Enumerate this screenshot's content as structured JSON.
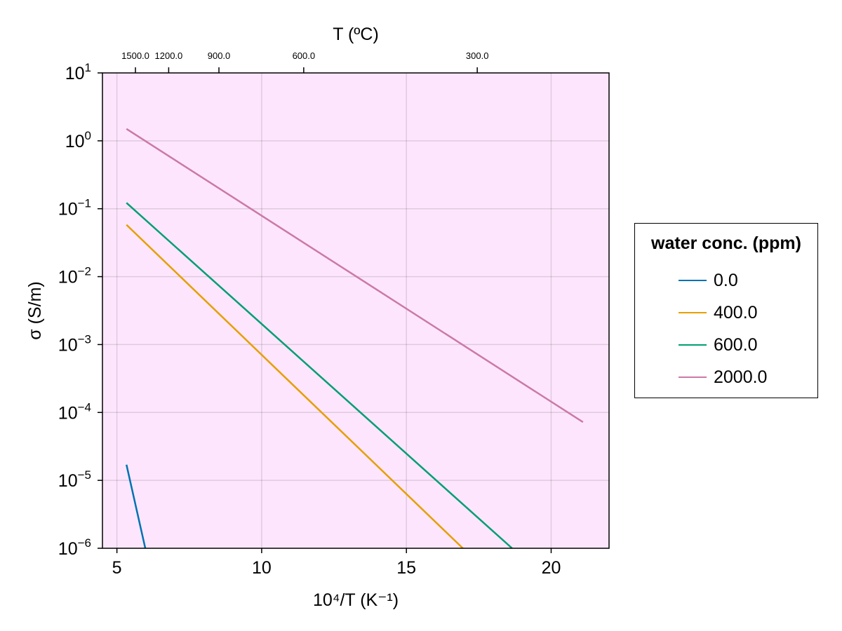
{
  "chart_data": {
    "type": "line",
    "title": "",
    "xlabel": "10⁴/T (K⁻¹)",
    "ylabel": "σ (S/m)",
    "x2label": "T (ºC)",
    "xlim": [
      4.5,
      22.0
    ],
    "ylim": [
      1e-06,
      10
    ],
    "yscale": "log",
    "x_ticks": [
      5,
      10,
      15,
      20
    ],
    "x_tick_labels": [
      "5",
      "10",
      "15",
      "20"
    ],
    "y_ticks": [
      1e-06,
      1e-05,
      0.0001,
      0.001,
      0.01,
      0.1,
      1,
      10
    ],
    "y_tick_exponents": [
      "-6",
      "-5",
      "-4",
      "-3",
      "-2",
      "-1",
      "0",
      "1"
    ],
    "y_tick_base": "10",
    "top_ticks": [
      1500.0,
      1200.0,
      900.0,
      600.0,
      300.0
    ],
    "top_tick_labels": [
      "1500.0",
      "1200.0",
      "900.0",
      "600.0",
      "300.0"
    ],
    "grid": true,
    "background_color": "#fde6fd",
    "legend": {
      "title": "water conc. (ppm)",
      "placement": "right"
    },
    "series": [
      {
        "name": "0.0",
        "color": "#0072b2",
        "x": [
          5.33,
          5.98
        ],
        "y": [
          1.7e-05,
          1e-06
        ]
      },
      {
        "name": "400.0",
        "color": "#e69f00",
        "x": [
          5.33,
          16.95
        ],
        "y": [
          0.058,
          1e-06
        ]
      },
      {
        "name": "600.0",
        "color": "#009e73",
        "x": [
          5.33,
          18.65
        ],
        "y": [
          0.122,
          1e-06
        ]
      },
      {
        "name": "2000.0",
        "color": "#cc79a7",
        "x": [
          5.33,
          21.1
        ],
        "y": [
          1.5,
          7.2e-05
        ]
      }
    ]
  }
}
